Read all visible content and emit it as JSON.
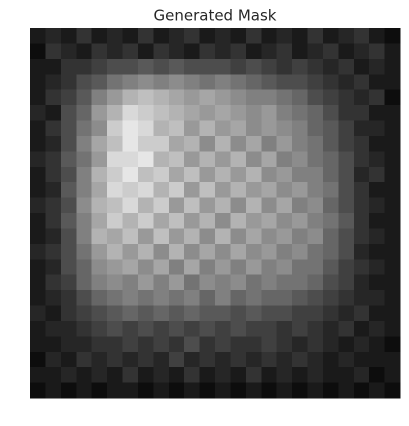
{
  "chart_data": {
    "type": "heatmap",
    "title": "Generated Mask",
    "cmap": "gray",
    "vlim": [
      0,
      1
    ],
    "values": [
      [
        0.1,
        0.15,
        0.1,
        0.2,
        0.1,
        0.15,
        0.1,
        0.2,
        0.1,
        0.15,
        0.2,
        0.1,
        0.15,
        0.1,
        0.2,
        0.1,
        0.15,
        0.1,
        0.2,
        0.1,
        0.15,
        0.2,
        0.1,
        0.05
      ],
      [
        0.05,
        0.2,
        0.15,
        0.1,
        0.2,
        0.15,
        0.2,
        0.1,
        0.2,
        0.15,
        0.1,
        0.2,
        0.15,
        0.2,
        0.1,
        0.15,
        0.2,
        0.1,
        0.15,
        0.2,
        0.1,
        0.15,
        0.2,
        0.1
      ],
      [
        0.1,
        0.1,
        0.2,
        0.2,
        0.25,
        0.3,
        0.3,
        0.35,
        0.3,
        0.35,
        0.3,
        0.3,
        0.3,
        0.25,
        0.3,
        0.25,
        0.2,
        0.25,
        0.2,
        0.15,
        0.2,
        0.1,
        0.15,
        0.1
      ],
      [
        0.1,
        0.15,
        0.2,
        0.3,
        0.35,
        0.45,
        0.5,
        0.55,
        0.5,
        0.55,
        0.5,
        0.45,
        0.5,
        0.45,
        0.4,
        0.35,
        0.3,
        0.3,
        0.25,
        0.2,
        0.15,
        0.2,
        0.1,
        0.1
      ],
      [
        0.1,
        0.2,
        0.25,
        0.35,
        0.5,
        0.6,
        0.7,
        0.75,
        0.7,
        0.65,
        0.6,
        0.65,
        0.6,
        0.55,
        0.5,
        0.5,
        0.45,
        0.4,
        0.3,
        0.25,
        0.2,
        0.15,
        0.2,
        0.05
      ],
      [
        0.15,
        0.1,
        0.3,
        0.4,
        0.6,
        0.7,
        0.85,
        0.8,
        0.75,
        0.7,
        0.65,
        0.6,
        0.65,
        0.6,
        0.55,
        0.6,
        0.5,
        0.45,
        0.4,
        0.3,
        0.2,
        0.2,
        0.1,
        0.1
      ],
      [
        0.1,
        0.2,
        0.3,
        0.45,
        0.55,
        0.8,
        0.9,
        0.85,
        0.7,
        0.75,
        0.6,
        0.7,
        0.6,
        0.65,
        0.55,
        0.6,
        0.55,
        0.5,
        0.4,
        0.35,
        0.25,
        0.15,
        0.15,
        0.1
      ],
      [
        0.1,
        0.15,
        0.3,
        0.5,
        0.65,
        0.75,
        0.9,
        0.8,
        0.8,
        0.65,
        0.7,
        0.55,
        0.7,
        0.55,
        0.65,
        0.5,
        0.6,
        0.5,
        0.45,
        0.35,
        0.25,
        0.2,
        0.1,
        0.1
      ],
      [
        0.15,
        0.2,
        0.35,
        0.45,
        0.6,
        0.85,
        0.85,
        0.9,
        0.7,
        0.75,
        0.6,
        0.7,
        0.6,
        0.7,
        0.55,
        0.65,
        0.5,
        0.55,
        0.45,
        0.4,
        0.3,
        0.2,
        0.15,
        0.1
      ],
      [
        0.1,
        0.2,
        0.3,
        0.5,
        0.7,
        0.8,
        0.9,
        0.75,
        0.8,
        0.65,
        0.75,
        0.6,
        0.7,
        0.6,
        0.7,
        0.55,
        0.6,
        0.5,
        0.5,
        0.4,
        0.3,
        0.15,
        0.2,
        0.1
      ],
      [
        0.1,
        0.15,
        0.35,
        0.5,
        0.65,
        0.85,
        0.8,
        0.85,
        0.7,
        0.8,
        0.6,
        0.75,
        0.6,
        0.7,
        0.6,
        0.65,
        0.55,
        0.6,
        0.5,
        0.45,
        0.3,
        0.2,
        0.1,
        0.1
      ],
      [
        0.15,
        0.2,
        0.3,
        0.55,
        0.7,
        0.75,
        0.85,
        0.7,
        0.8,
        0.6,
        0.75,
        0.6,
        0.7,
        0.55,
        0.7,
        0.55,
        0.65,
        0.5,
        0.55,
        0.4,
        0.3,
        0.2,
        0.15,
        0.1
      ],
      [
        0.1,
        0.2,
        0.35,
        0.5,
        0.65,
        0.8,
        0.7,
        0.8,
        0.65,
        0.75,
        0.6,
        0.7,
        0.55,
        0.7,
        0.6,
        0.65,
        0.55,
        0.6,
        0.5,
        0.45,
        0.35,
        0.2,
        0.1,
        0.1
      ],
      [
        0.1,
        0.15,
        0.3,
        0.5,
        0.7,
        0.65,
        0.75,
        0.6,
        0.75,
        0.6,
        0.7,
        0.55,
        0.7,
        0.55,
        0.65,
        0.55,
        0.6,
        0.5,
        0.55,
        0.4,
        0.3,
        0.2,
        0.15,
        0.1
      ],
      [
        0.15,
        0.2,
        0.3,
        0.45,
        0.6,
        0.7,
        0.6,
        0.7,
        0.55,
        0.7,
        0.55,
        0.65,
        0.55,
        0.65,
        0.55,
        0.6,
        0.5,
        0.55,
        0.45,
        0.4,
        0.3,
        0.15,
        0.1,
        0.1
      ],
      [
        0.1,
        0.15,
        0.3,
        0.4,
        0.55,
        0.6,
        0.65,
        0.55,
        0.65,
        0.5,
        0.65,
        0.5,
        0.6,
        0.5,
        0.6,
        0.5,
        0.55,
        0.45,
        0.45,
        0.35,
        0.25,
        0.2,
        0.15,
        0.1
      ],
      [
        0.1,
        0.2,
        0.25,
        0.4,
        0.5,
        0.55,
        0.5,
        0.6,
        0.5,
        0.6,
        0.45,
        0.55,
        0.5,
        0.55,
        0.45,
        0.5,
        0.45,
        0.45,
        0.4,
        0.3,
        0.25,
        0.15,
        0.1,
        0.1
      ],
      [
        0.1,
        0.15,
        0.2,
        0.3,
        0.4,
        0.45,
        0.5,
        0.45,
        0.5,
        0.45,
        0.5,
        0.4,
        0.5,
        0.4,
        0.45,
        0.4,
        0.4,
        0.35,
        0.3,
        0.25,
        0.2,
        0.15,
        0.15,
        0.1
      ],
      [
        0.15,
        0.1,
        0.2,
        0.25,
        0.3,
        0.35,
        0.4,
        0.35,
        0.4,
        0.35,
        0.4,
        0.35,
        0.35,
        0.3,
        0.35,
        0.3,
        0.3,
        0.25,
        0.25,
        0.2,
        0.15,
        0.2,
        0.1,
        0.1
      ],
      [
        0.1,
        0.15,
        0.15,
        0.2,
        0.25,
        0.3,
        0.25,
        0.3,
        0.25,
        0.3,
        0.25,
        0.3,
        0.25,
        0.3,
        0.25,
        0.25,
        0.2,
        0.25,
        0.2,
        0.15,
        0.2,
        0.1,
        0.15,
        0.1
      ],
      [
        0.1,
        0.1,
        0.15,
        0.15,
        0.2,
        0.2,
        0.25,
        0.2,
        0.25,
        0.2,
        0.3,
        0.2,
        0.25,
        0.2,
        0.2,
        0.25,
        0.2,
        0.15,
        0.2,
        0.15,
        0.1,
        0.15,
        0.1,
        0.05
      ],
      [
        0.05,
        0.15,
        0.1,
        0.2,
        0.15,
        0.2,
        0.15,
        0.2,
        0.15,
        0.25,
        0.15,
        0.2,
        0.15,
        0.2,
        0.15,
        0.2,
        0.15,
        0.2,
        0.15,
        0.1,
        0.15,
        0.1,
        0.1,
        0.1
      ],
      [
        0.1,
        0.1,
        0.15,
        0.1,
        0.15,
        0.1,
        0.2,
        0.1,
        0.15,
        0.1,
        0.2,
        0.1,
        0.15,
        0.1,
        0.2,
        0.1,
        0.15,
        0.1,
        0.15,
        0.1,
        0.1,
        0.15,
        0.05,
        0.1
      ],
      [
        0.05,
        0.1,
        0.05,
        0.1,
        0.05,
        0.1,
        0.1,
        0.05,
        0.1,
        0.05,
        0.1,
        0.05,
        0.1,
        0.05,
        0.1,
        0.05,
        0.1,
        0.05,
        0.1,
        0.05,
        0.1,
        0.05,
        0.1,
        0.05
      ]
    ]
  }
}
